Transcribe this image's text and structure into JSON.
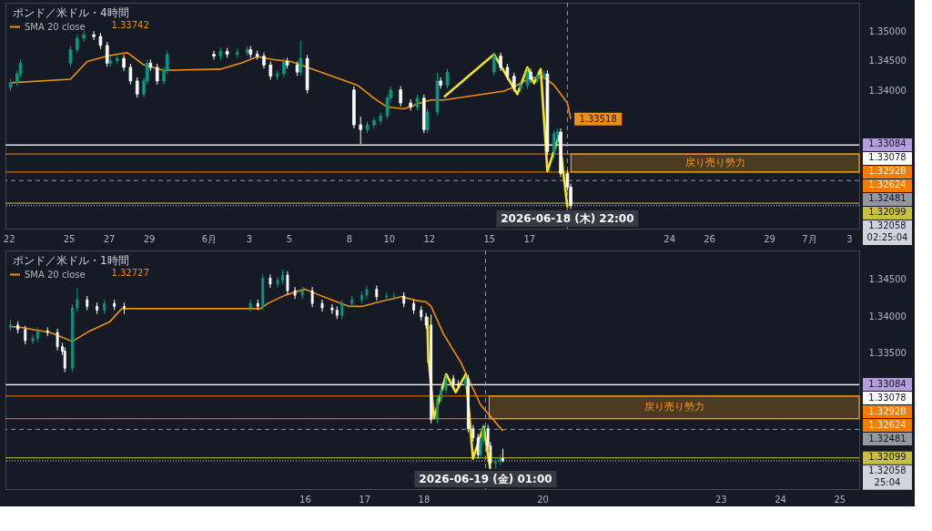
{
  "chart_data": [
    {
      "type": "candlestick",
      "title": "ポンド／米ドル・4時間",
      "legend": "top left",
      "xlim": [
        "2026-05-21T20:00",
        "2026-07-03T12:00"
      ],
      "xticks": [
        {
          "value": "2026-05-22",
          "label": "22"
        },
        {
          "value": "2026-05-25",
          "label": "25"
        },
        {
          "value": "2026-05-27",
          "label": "27"
        },
        {
          "value": "2026-05-29",
          "label": "29"
        },
        {
          "value": "2026-06-01",
          "label": "6月"
        },
        {
          "value": "2026-06-03",
          "label": "3"
        },
        {
          "value": "2026-06-05",
          "label": "5"
        },
        {
          "value": "2026-06-08",
          "label": "8"
        },
        {
          "value": "2026-06-10",
          "label": "10"
        },
        {
          "value": "2026-06-12",
          "label": "12"
        },
        {
          "value": "2026-06-15",
          "label": "15"
        },
        {
          "value": "2026-06-17",
          "label": "17"
        },
        {
          "value": "2026-06-24",
          "label": "24"
        },
        {
          "value": "2026-06-26",
          "label": "26"
        },
        {
          "value": "2026-06-29",
          "label": "29"
        },
        {
          "value": "2026-07-01",
          "label": "7月"
        },
        {
          "value": "2026-07-03",
          "label": "3"
        }
      ],
      "ylim": [
        1.3167,
        1.3548
      ],
      "yticks": [
        {
          "value": 1.35,
          "label": "1.35000"
        },
        {
          "value": 1.345,
          "label": "1.34500"
        },
        {
          "value": 1.34,
          "label": "1.34000"
        }
      ],
      "x": [
        "2026-05-22T02:00",
        "2026-05-22T10:00",
        "2026-05-22T14:00",
        "2026-05-25T02:00",
        "2026-05-25T10:00",
        "2026-05-25T18:00",
        "2026-05-26T06:00",
        "2026-05-26T14:00",
        "2026-05-26T22:00",
        "2026-05-27T02:00",
        "2026-05-27T10:00",
        "2026-05-27T18:00",
        "2026-05-28T02:00",
        "2026-05-28T10:00",
        "2026-05-28T18:00",
        "2026-05-28T22:00",
        "2026-05-29T02:00",
        "2026-05-29T10:00",
        "2026-05-29T18:00",
        "2026-05-29T22:00",
        "2026-06-01T06:00",
        "2026-06-01T14:00",
        "2026-06-01T22:00",
        "2026-06-02T10:00",
        "2026-06-02T22:00",
        "2026-06-03T02:00",
        "2026-06-03T10:00",
        "2026-06-03T18:00",
        "2026-06-04T02:00",
        "2026-06-04T10:00",
        "2026-06-04T18:00",
        "2026-06-04T22:00",
        "2026-06-05T10:00",
        "2026-06-05T14:00",
        "2026-06-05T22:00",
        "2026-06-08T06:00",
        "2026-06-08T14:00",
        "2026-06-08T22:00",
        "2026-06-09T06:00",
        "2026-06-09T14:00",
        "2026-06-09T22:00",
        "2026-06-10T02:00",
        "2026-06-10T14:00",
        "2026-06-11T02:00",
        "2026-06-11T10:00",
        "2026-06-11T18:00",
        "2026-06-11T22:00",
        "2026-06-12T10:00",
        "2026-06-12T14:00",
        "2026-06-12T22:00",
        "2026-06-15T06:00",
        "2026-06-15T14:00",
        "2026-06-15T22:00",
        "2026-06-16T06:00",
        "2026-06-16T14:00",
        "2026-06-16T22:00",
        "2026-06-17T02:00",
        "2026-06-17T10:00",
        "2026-06-17T18:00",
        "2026-06-17T22:00",
        "2026-06-18T06:00",
        "2026-06-18T10:00",
        "2026-06-18T14:00",
        "2026-06-18T22:00",
        "2026-06-19T02:00"
      ],
      "ohlc": [
        [
          1.3405,
          1.3419,
          1.3399,
          1.3413
        ],
        [
          1.3413,
          1.3434,
          1.3407,
          1.3428
        ],
        [
          1.3428,
          1.3452,
          1.3422,
          1.3446
        ],
        [
          1.3446,
          1.3475,
          1.344,
          1.3469
        ],
        [
          1.3469,
          1.3494,
          1.3463,
          1.3488
        ],
        [
          1.3488,
          1.35,
          1.3482,
          1.3494
        ],
        [
          1.3494,
          1.35,
          1.3485,
          1.3491
        ],
        [
          1.3491,
          1.3497,
          1.347,
          1.3476
        ],
        [
          1.3476,
          1.3482,
          1.344,
          1.3446
        ],
        [
          1.3446,
          1.3456,
          1.344,
          1.345
        ],
        [
          1.345,
          1.346,
          1.3444,
          1.3454
        ],
        [
          1.3454,
          1.346,
          1.3433,
          1.3439
        ],
        [
          1.3439,
          1.3445,
          1.341,
          1.3416
        ],
        [
          1.3416,
          1.3422,
          1.3388,
          1.3394
        ],
        [
          1.3394,
          1.3422,
          1.3388,
          1.3416
        ],
        [
          1.3416,
          1.3452,
          1.341,
          1.3446
        ],
        [
          1.3446,
          1.3452,
          1.3433,
          1.3439
        ],
        [
          1.3439,
          1.3445,
          1.341,
          1.3416
        ],
        [
          1.3416,
          1.344,
          1.341,
          1.3434
        ],
        [
          1.3434,
          1.3467,
          1.3428,
          1.3461
        ],
        [
          1.3461,
          1.3467,
          1.3452,
          1.3458
        ],
        [
          1.3458,
          1.3472,
          1.3452,
          1.3466
        ],
        [
          1.3466,
          1.3472,
          1.3455,
          1.3461
        ],
        [
          1.3461,
          1.347,
          1.3455,
          1.3464
        ],
        [
          1.3464,
          1.3475,
          1.3458,
          1.3469
        ],
        [
          1.3469,
          1.3475,
          1.3455,
          1.3461
        ],
        [
          1.3461,
          1.3467,
          1.3452,
          1.3458
        ],
        [
          1.3458,
          1.3464,
          1.3437,
          1.3443
        ],
        [
          1.3443,
          1.3449,
          1.3418,
          1.3424
        ],
        [
          1.3424,
          1.3434,
          1.3418,
          1.3428
        ],
        [
          1.3428,
          1.3455,
          1.3422,
          1.3449
        ],
        [
          1.3449,
          1.3455,
          1.3437,
          1.3443
        ],
        [
          1.3443,
          1.3449,
          1.3425,
          1.3431
        ],
        [
          1.3431,
          1.3484,
          1.3425,
          1.3454
        ],
        [
          1.3454,
          1.346,
          1.3395,
          1.3401
        ],
        [
          1.3401,
          1.3407,
          1.3336,
          1.3342
        ],
        [
          1.3342,
          1.3356,
          1.331,
          1.3334
        ],
        [
          1.3334,
          1.3348,
          1.3328,
          1.3342
        ],
        [
          1.3342,
          1.3355,
          1.3336,
          1.3349
        ],
        [
          1.3349,
          1.3363,
          1.3343,
          1.3357
        ],
        [
          1.3357,
          1.3393,
          1.3351,
          1.3387
        ],
        [
          1.3387,
          1.3407,
          1.3381,
          1.3401
        ],
        [
          1.3401,
          1.3407,
          1.3373,
          1.3379
        ],
        [
          1.3379,
          1.3385,
          1.3366,
          1.3372
        ],
        [
          1.3372,
          1.3393,
          1.3366,
          1.3387
        ],
        [
          1.3387,
          1.3393,
          1.3328,
          1.3334
        ],
        [
          1.3334,
          1.337,
          1.3328,
          1.3364
        ],
        [
          1.3364,
          1.343,
          1.3358,
          1.3416
        ],
        [
          1.3416,
          1.3422,
          1.3403,
          1.3409
        ],
        [
          1.3409,
          1.3437,
          1.3403,
          1.3431
        ],
        [
          1.3431,
          1.3464,
          1.3425,
          1.3458
        ],
        [
          1.3458,
          1.3464,
          1.3433,
          1.3439
        ],
        [
          1.3439,
          1.3445,
          1.3418,
          1.3424
        ],
        [
          1.3424,
          1.343,
          1.3398,
          1.3404
        ],
        [
          1.3404,
          1.3415,
          1.3398,
          1.3409
        ],
        [
          1.3409,
          1.3437,
          1.3403,
          1.3431
        ],
        [
          1.3431,
          1.3437,
          1.3413,
          1.3419
        ],
        [
          1.3419,
          1.343,
          1.3413,
          1.3424
        ],
        [
          1.3424,
          1.3434,
          1.3418,
          1.3428
        ],
        [
          1.3428,
          1.3434,
          1.3291,
          1.3297
        ],
        [
          1.3297,
          1.3333,
          1.3285,
          1.3327
        ],
        [
          1.3327,
          1.3336,
          1.331,
          1.333
        ],
        [
          1.333,
          1.3336,
          1.3254,
          1.326
        ],
        [
          1.326,
          1.3266,
          1.3231,
          1.3237
        ],
        [
          1.3237,
          1.3243,
          1.32,
          1.3206
        ]
      ],
      "colors": [
        "#089981",
        "#089981",
        "#089981",
        "#089981",
        "#089981",
        "#089981",
        "#ffffff",
        "#ffffff",
        "#ffffff",
        "#089981",
        "#089981",
        "#ffffff",
        "#ffffff",
        "#ffffff",
        "#089981",
        "#089981",
        "#ffffff",
        "#ffffff",
        "#089981",
        "#089981",
        "#ffffff",
        "#089981",
        "#ffffff",
        "#089981",
        "#089981",
        "#ffffff",
        "#ffffff",
        "#ffffff",
        "#ffffff",
        "#089981",
        "#089981",
        "#ffffff",
        "#ffffff",
        "#089981",
        "#ffffff",
        "#ffffff",
        "#ffffff",
        "#089981",
        "#089981",
        "#089981",
        "#089981",
        "#089981",
        "#ffffff",
        "#ffffff",
        "#089981",
        "#ffffff",
        "#089981",
        "#089981",
        "#ffffff",
        "#089981",
        "#089981",
        "#ffffff",
        "#ffffff",
        "#ffffff",
        "#089981",
        "#089981",
        "#ffffff",
        "#089981",
        "#089981",
        "#ffffff",
        "#089981",
        "#089981",
        "#ffffff",
        "#ffffff",
        "#ffffff"
      ],
      "series": [
        {
          "name": "SMA 20 close",
          "type": "line",
          "color": "#f0900a",
          "x": [
            "2026-05-22T02:00",
            "2026-05-25T02:00",
            "2026-05-25T22:00",
            "2026-05-26T22:00",
            "2026-05-27T22:00",
            "2026-05-28T18:00",
            "2026-05-29T18:00",
            "2026-06-01T14:00",
            "2026-06-02T14:00",
            "2026-06-03T10:00",
            "2026-06-04T06:00",
            "2026-06-05T02:00",
            "2026-06-05T14:00",
            "2026-06-08T10:00",
            "2026-06-09T06:00",
            "2026-06-09T22:00",
            "2026-06-10T18:00",
            "2026-06-11T14:00",
            "2026-06-12T02:00",
            "2026-06-12T18:00",
            "2026-06-15T18:00",
            "2026-06-16T06:00",
            "2026-06-17T02:00",
            "2026-06-17T18:00",
            "2026-06-18T06:00",
            "2026-06-18T22:00",
            "2026-06-19T02:00"
          ],
          "values": [
            1.3413,
            1.3419,
            1.3449,
            1.3458,
            1.3464,
            1.3443,
            1.3434,
            1.3436,
            1.3446,
            1.3457,
            1.3452,
            1.3449,
            1.3443,
            1.3409,
            1.3387,
            1.3372,
            1.3369,
            1.3379,
            1.3384,
            1.3384,
            1.3399,
            1.3406,
            1.3422,
            1.3422,
            1.3409,
            1.3379,
            1.3352
          ]
        },
        {
          "type": "line",
          "color": "#f5e61b",
          "x": [
            "2026-06-12T18:00",
            "2026-06-15T06:00",
            "2026-06-16T10:00",
            "2026-06-16T22:00",
            "2026-06-17T06:00",
            "2026-06-17T14:00",
            "2026-06-17T22:00",
            "2026-06-18T12:00",
            "2026-06-18T22:00"
          ],
          "values": [
            1.3389,
            1.3461,
            1.3394,
            1.3439,
            1.3412,
            1.3436,
            1.3264,
            1.3324,
            1.3203
          ]
        }
      ],
      "ref_lines": [
        {
          "axis": "y",
          "value": 1.33084,
          "label": "1.33084",
          "color": "#b39ddb",
          "line_style": "solid"
        },
        {
          "axis": "y",
          "value": 1.33078,
          "label": "1.33078",
          "color": "#ffffff",
          "line_style": "solid"
        },
        {
          "axis": "y",
          "value": 1.32928,
          "label": "1.32928",
          "color": "#f57c00",
          "line_style": "solid"
        },
        {
          "axis": "y",
          "value": 1.32624,
          "label": "1.32624",
          "color": "#f57c00",
          "line_style": "solid"
        },
        {
          "axis": "y",
          "value": 1.32481,
          "label": "1.32481",
          "color": "#9598a1",
          "line_style": "dashed"
        },
        {
          "axis": "y",
          "value": 1.32099,
          "label": "1.32099",
          "color": "#c8c040",
          "line_style": "solid"
        },
        {
          "axis": "y",
          "value": 1.32058,
          "label": "1.32058\n02:25:04",
          "color": "#d1d4dc",
          "line_style": "dotted"
        },
        {
          "axis": "x",
          "value": "2026-06-18T22:00",
          "label": "2026-06-18 (木)  22:00",
          "color": "#9598a1",
          "line_style": "dashed"
        }
      ],
      "bands": [
        {
          "axis": "y",
          "from": 1.32624,
          "to": 1.32928,
          "label": "戻り売り勢力",
          "color": "#f59c1a"
        }
      ],
      "annotations": [
        "1.33742",
        {
          "text": "1.33518",
          "x": "2026-06-19T02:00",
          "y": 1.33518
        }
      ]
    },
    {
      "type": "candlestick",
      "title": "ポンド／米ドル・1時間",
      "legend": "top left",
      "xlim": [
        "2026-06-10T23:00",
        "2026-06-25T08:00"
      ],
      "xticks": [
        {
          "value": "2026-06-16",
          "label": "16"
        },
        {
          "value": "2026-06-17",
          "label": "17"
        },
        {
          "value": "2026-06-18",
          "label": "18"
        },
        {
          "value": "2026-06-20",
          "label": "20"
        },
        {
          "value": "2026-06-23",
          "label": "23"
        },
        {
          "value": "2026-06-24",
          "label": "24"
        },
        {
          "value": "2026-06-25",
          "label": "25"
        }
      ],
      "ylim": [
        1.3168,
        1.3488
      ],
      "yticks": [
        {
          "value": 1.345,
          "label": "1.34500"
        },
        {
          "value": 1.34,
          "label": "1.34000"
        },
        {
          "value": 1.335,
          "label": "1.33500"
        }
      ],
      "x": [
        "2026-06-11T01:00",
        "2026-06-11T04:00",
        "2026-06-11T07:00",
        "2026-06-11T10:00",
        "2026-06-11T12:00",
        "2026-06-11T16:00",
        "2026-06-11T20:00",
        "2026-06-11T22:00",
        "2026-06-11T23:00",
        "2026-06-12T02:00",
        "2026-06-12T04:00",
        "2026-06-12T08:00",
        "2026-06-12T12:00",
        "2026-06-12T15:00",
        "2026-06-12T19:00",
        "2026-06-12T23:00",
        "2026-06-15T02:00",
        "2026-06-15T05:00",
        "2026-06-15T07:00",
        "2026-06-15T10:00",
        "2026-06-15T13:00",
        "2026-06-15T15:00",
        "2026-06-15T17:00",
        "2026-06-15T20:00",
        "2026-06-15T23:00",
        "2026-06-16T03:00",
        "2026-06-16T07:00",
        "2026-06-16T11:00",
        "2026-06-16T13:00",
        "2026-06-16T15:00",
        "2026-06-16T19:00",
        "2026-06-16T23:00",
        "2026-06-17T01:00",
        "2026-06-17T05:00",
        "2026-06-17T09:00",
        "2026-06-17T12:00",
        "2026-06-17T16:00",
        "2026-06-17T20:00",
        "2026-06-17T23:00",
        "2026-06-18T01:00",
        "2026-06-18T03:00",
        "2026-06-18T05:30",
        "2026-06-18T07:00",
        "2026-06-18T09:00",
        "2026-06-18T12:00",
        "2026-06-18T14:00",
        "2026-06-18T17:00",
        "2026-06-18T18:00",
        "2026-06-18T20:00",
        "2026-06-18T22:00",
        "2026-06-18T23:00",
        "2026-06-19T00:00",
        "2026-06-19T02:00",
        "2026-06-19T03:00",
        "2026-06-19T05:00",
        "2026-06-19T07:00",
        "2026-06-19T08:00"
      ],
      "ohlc": [
        [
          1.3385,
          1.3395,
          1.338,
          1.3388
        ],
        [
          1.3388,
          1.3393,
          1.3377,
          1.3382
        ],
        [
          1.3382,
          1.3387,
          1.3362,
          1.3367
        ],
        [
          1.3367,
          1.3375,
          1.3362,
          1.337
        ],
        [
          1.337,
          1.3385,
          1.3365,
          1.338
        ],
        [
          1.338,
          1.3385,
          1.3373,
          1.3378
        ],
        [
          1.3378,
          1.3383,
          1.3354,
          1.3359
        ],
        [
          1.3359,
          1.3364,
          1.3348,
          1.3353
        ],
        [
          1.3353,
          1.3358,
          1.3325,
          1.333
        ],
        [
          1.333,
          1.3416,
          1.3325,
          1.3411
        ],
        [
          1.3411,
          1.3437,
          1.3406,
          1.3422
        ],
        [
          1.3422,
          1.3427,
          1.3408,
          1.3413
        ],
        [
          1.3413,
          1.3418,
          1.3403,
          1.3408
        ],
        [
          1.3408,
          1.3422,
          1.3403,
          1.3417
        ],
        [
          1.3417,
          1.3422,
          1.3408,
          1.3413
        ],
        [
          1.3413,
          1.3418,
          1.3403,
          1.3411
        ],
        [
          1.3411,
          1.3422,
          1.3406,
          1.3417
        ],
        [
          1.3417,
          1.3422,
          1.3408,
          1.3413
        ],
        [
          1.3413,
          1.3456,
          1.3408,
          1.3451
        ],
        [
          1.3451,
          1.3456,
          1.3438,
          1.3443
        ],
        [
          1.3443,
          1.3453,
          1.3438,
          1.3448
        ],
        [
          1.3448,
          1.3462,
          1.3443,
          1.3455
        ],
        [
          1.3455,
          1.346,
          1.3429,
          1.3434
        ],
        [
          1.3434,
          1.3439,
          1.3423,
          1.3428
        ],
        [
          1.3428,
          1.3439,
          1.3423,
          1.3434
        ],
        [
          1.3434,
          1.3439,
          1.3412,
          1.3417
        ],
        [
          1.3417,
          1.3422,
          1.3406,
          1.3411
        ],
        [
          1.3411,
          1.3416,
          1.3403,
          1.3408
        ],
        [
          1.3408,
          1.3413,
          1.3396,
          1.3401
        ],
        [
          1.3401,
          1.3422,
          1.3396,
          1.3417
        ],
        [
          1.3417,
          1.3427,
          1.3412,
          1.3422
        ],
        [
          1.3422,
          1.3433,
          1.3417,
          1.3428
        ],
        [
          1.3428,
          1.3441,
          1.3423,
          1.3436
        ],
        [
          1.3436,
          1.3441,
          1.3421,
          1.3426
        ],
        [
          1.3426,
          1.3432,
          1.3421,
          1.3427
        ],
        [
          1.3427,
          1.3432,
          1.3422,
          1.3427
        ],
        [
          1.3427,
          1.3432,
          1.3412,
          1.3417
        ],
        [
          1.3417,
          1.3422,
          1.3403,
          1.3408
        ],
        [
          1.3408,
          1.3413,
          1.3394,
          1.3399
        ],
        [
          1.3399,
          1.3404,
          1.3383,
          1.3388
        ],
        [
          1.3388,
          1.3402,
          1.3256,
          1.3261
        ],
        [
          1.3261,
          1.3294,
          1.3256,
          1.3289
        ],
        [
          1.3289,
          1.3306,
          1.3284,
          1.3301
        ],
        [
          1.3301,
          1.3321,
          1.3296,
          1.3316
        ],
        [
          1.3316,
          1.3321,
          1.3304,
          1.3309
        ],
        [
          1.3309,
          1.3314,
          1.3302,
          1.3307
        ],
        [
          1.3307,
          1.3321,
          1.3302,
          1.3316
        ],
        [
          1.3316,
          1.3321,
          1.3244,
          1.3249
        ],
        [
          1.3249,
          1.3254,
          1.3232,
          1.3237
        ],
        [
          1.3237,
          1.3242,
          1.3209,
          1.3214
        ],
        [
          1.3214,
          1.3237,
          1.3209,
          1.3232
        ],
        [
          1.3232,
          1.3254,
          1.3227,
          1.3249
        ],
        [
          1.3249,
          1.3254,
          1.3221,
          1.3226
        ],
        [
          1.3226,
          1.3231,
          1.3198,
          1.3203
        ],
        [
          1.3203,
          1.321,
          1.3195,
          1.3205
        ],
        [
          1.3205,
          1.3215,
          1.32,
          1.3209
        ],
        [
          1.3209,
          1.3222,
          1.3204,
          1.3206
        ]
      ],
      "colors": [
        "#089981",
        "#ffffff",
        "#ffffff",
        "#089981",
        "#089981",
        "#ffffff",
        "#ffffff",
        "#ffffff",
        "#ffffff",
        "#089981",
        "#089981",
        "#ffffff",
        "#ffffff",
        "#089981",
        "#ffffff",
        "#ffffff",
        "#089981",
        "#ffffff",
        "#089981",
        "#ffffff",
        "#089981",
        "#089981",
        "#ffffff",
        "#ffffff",
        "#089981",
        "#ffffff",
        "#ffffff",
        "#ffffff",
        "#ffffff",
        "#089981",
        "#089981",
        "#089981",
        "#089981",
        "#ffffff",
        "#089981",
        "#089981",
        "#ffffff",
        "#ffffff",
        "#ffffff",
        "#ffffff",
        "#ffffff",
        "#089981",
        "#089981",
        "#089981",
        "#ffffff",
        "#ffffff",
        "#089981",
        "#ffffff",
        "#ffffff",
        "#ffffff",
        "#089981",
        "#089981",
        "#ffffff",
        "#ffffff",
        "#089981",
        "#089981",
        "#ffffff"
      ],
      "series": [
        {
          "name": "SMA 20 close",
          "type": "line",
          "color": "#f0900a",
          "x": [
            "2026-06-11T01:00",
            "2026-06-11T05:00",
            "2026-06-11T10:00",
            "2026-06-11T17:00",
            "2026-06-11T21:00",
            "2026-06-12T02:00",
            "2026-06-12T09:00",
            "2026-06-12T17:00",
            "2026-06-12T22:00",
            "2026-06-15T06:00",
            "2026-06-15T09:00",
            "2026-06-15T16:00",
            "2026-06-16T00:00",
            "2026-06-16T06:00",
            "2026-06-16T13:00",
            "2026-06-16T18:00",
            "2026-06-16T23:00",
            "2026-06-17T07:00",
            "2026-06-17T15:00",
            "2026-06-17T21:00",
            "2026-06-18T01:00",
            "2026-06-18T03:00",
            "2026-06-18T08:00",
            "2026-06-18T15:00",
            "2026-06-18T23:00",
            "2026-06-19T08:00"
          ],
          "values": [
            1.3386,
            1.3385,
            1.3382,
            1.3378,
            1.3373,
            1.3366,
            1.338,
            1.3392,
            1.341,
            1.341,
            1.3417,
            1.3428,
            1.3436,
            1.3428,
            1.3419,
            1.3413,
            1.3413,
            1.342,
            1.3426,
            1.3421,
            1.3419,
            1.3413,
            1.3376,
            1.3338,
            1.3281,
            1.3246
          ]
        },
        {
          "type": "line",
          "color": "#f5e61b",
          "x": [
            "2026-06-18T01:26",
            "2026-06-18T01:55",
            "2026-06-18T02:05",
            "2026-06-18T04:10",
            "2026-06-18T09:07",
            "2026-06-18T12:58",
            "2026-06-18T17:02",
            "2026-06-18T19:55",
            "2026-06-19T00:14",
            "2026-06-19T02:53"
          ],
          "values": [
            1.3399,
            1.3338,
            1.334,
            1.3263,
            1.3322,
            1.3298,
            1.3322,
            1.3209,
            1.3252,
            1.3195
          ]
        }
      ],
      "ref_lines": [
        {
          "axis": "y",
          "value": 1.33084,
          "label": "1.33084",
          "color": "#b39ddb",
          "line_style": "solid"
        },
        {
          "axis": "y",
          "value": 1.33078,
          "label": "1.33078",
          "color": "#ffffff",
          "line_style": "solid"
        },
        {
          "axis": "y",
          "value": 1.32928,
          "label": "1.32928",
          "color": "#f57c00",
          "line_style": "solid"
        },
        {
          "axis": "y",
          "value": 1.32624,
          "label": "1.32624",
          "color": "#f57c00",
          "line_style": "solid"
        },
        {
          "axis": "y",
          "value": 1.32481,
          "label": "1.32481",
          "color": "#9598a1",
          "line_style": "dashed"
        },
        {
          "axis": "y",
          "value": 1.32099,
          "label": "1.32099",
          "color": "#c8c040",
          "line_style": "solid"
        },
        {
          "axis": "y",
          "value": 1.32058,
          "label": "1.32058\n25:04",
          "color": "#d1d4dc",
          "line_style": "dotted"
        },
        {
          "axis": "x",
          "value": "2026-06-19T01:00",
          "label": "2026-06-19 (金)  01:00",
          "color": "#9598a1",
          "line_style": "dashed"
        }
      ],
      "bands": [
        {
          "axis": "y",
          "from": 1.32624,
          "to": 1.32928,
          "label": "戻り売り勢力",
          "color": "#f59c1a"
        }
      ],
      "annotations": [
        "1.32727"
      ]
    }
  ]
}
